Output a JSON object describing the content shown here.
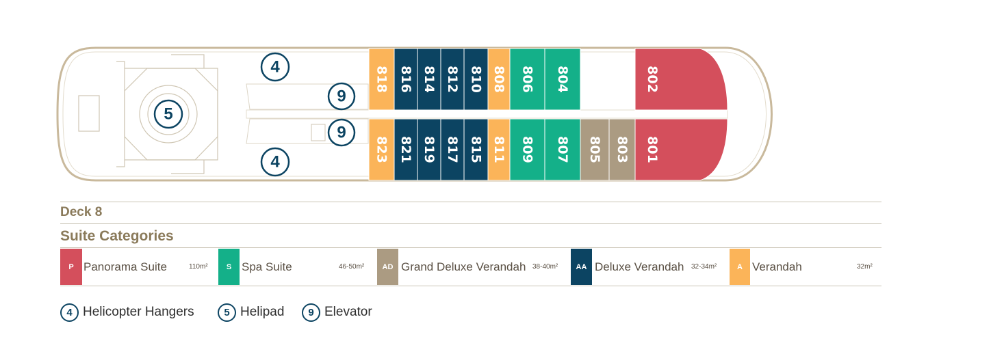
{
  "colors": {
    "panorama": "#d44f5c",
    "spa": "#14b089",
    "grand_deluxe": "#ab9b82",
    "deluxe": "#0c4462",
    "verandah": "#fbb459",
    "hull": "#c9b99c",
    "callout": "#0c4462"
  },
  "cabins": [
    {
      "num": "818",
      "cat": "A"
    },
    {
      "num": "816",
      "cat": "AA"
    },
    {
      "num": "814",
      "cat": "AA"
    },
    {
      "num": "812",
      "cat": "AA"
    },
    {
      "num": "810",
      "cat": "AA"
    },
    {
      "num": "808",
      "cat": "A"
    },
    {
      "num": "806",
      "cat": "S"
    },
    {
      "num": "804",
      "cat": "S"
    },
    {
      "num": "802",
      "cat": "P"
    },
    {
      "num": "823",
      "cat": "A"
    },
    {
      "num": "821",
      "cat": "AA"
    },
    {
      "num": "819",
      "cat": "AA"
    },
    {
      "num": "817",
      "cat": "AA"
    },
    {
      "num": "815",
      "cat": "AA"
    },
    {
      "num": "811",
      "cat": "A"
    },
    {
      "num": "809",
      "cat": "S"
    },
    {
      "num": "807",
      "cat": "S"
    },
    {
      "num": "805",
      "cat": "AD"
    },
    {
      "num": "803",
      "cat": "AD"
    },
    {
      "num": "801",
      "cat": "P"
    }
  ],
  "callouts": [
    "4",
    "5",
    "9",
    "9",
    "4"
  ],
  "deck": {
    "title": "Deck 8"
  },
  "categories": {
    "heading": "Suite Categories",
    "items": [
      {
        "code": "P",
        "name": "Panorama Suite",
        "size": "110m²",
        "color": "#d44f5c"
      },
      {
        "code": "S",
        "name": "Spa Suite",
        "size": "46-50m²",
        "color": "#14b089"
      },
      {
        "code": "AD",
        "name": "Grand Deluxe Verandah",
        "size": "38-40m²",
        "color": "#ab9b82"
      },
      {
        "code": "AA",
        "name": "Deluxe Verandah",
        "size": "32-34m²",
        "color": "#0c4462"
      },
      {
        "code": "A",
        "name": "Verandah",
        "size": "32m²",
        "color": "#fbb459"
      }
    ]
  },
  "legend": [
    {
      "num": "4",
      "label": "Helicopter Hangers"
    },
    {
      "num": "5",
      "label": "Helipad"
    },
    {
      "num": "9",
      "label": "Elevator"
    }
  ]
}
